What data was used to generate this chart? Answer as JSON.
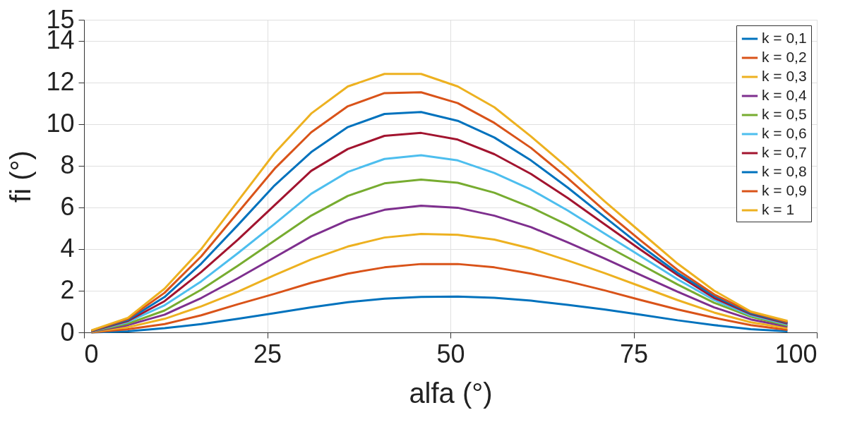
{
  "chart_data": {
    "type": "line",
    "xlabel": "alfa (°)",
    "ylabel": "fi (°)",
    "x": [
      1,
      6,
      11,
      16,
      21,
      26,
      31,
      36,
      41,
      46,
      51,
      56,
      61,
      66,
      71,
      76,
      81,
      86,
      91,
      96
    ],
    "xlim": [
      0,
      100
    ],
    "xticks": [
      0,
      25,
      50,
      75,
      100
    ],
    "ylim": [
      0,
      15
    ],
    "yticks": [
      0,
      2,
      4,
      6,
      8,
      10,
      12,
      14,
      15
    ],
    "grid": true,
    "legend": "top right",
    "line_style": "solid",
    "marker": "none",
    "series": [
      {
        "name": "k = 0,1",
        "color": "#0072bd",
        "values": [
          0,
          0.05,
          0.2,
          0.4,
          0.65,
          0.92,
          1.2,
          1.45,
          1.62,
          1.7,
          1.72,
          1.66,
          1.52,
          1.32,
          1.1,
          0.85,
          0.58,
          0.35,
          0.15,
          0.05
        ]
      },
      {
        "name": "k = 0,2",
        "color": "#d95319",
        "values": [
          0,
          0.15,
          0.4,
          0.82,
          1.35,
          1.85,
          2.38,
          2.82,
          3.12,
          3.28,
          3.28,
          3.12,
          2.82,
          2.45,
          2.02,
          1.55,
          1.1,
          0.7,
          0.35,
          0.12
        ]
      },
      {
        "name": "k = 0,3",
        "color": "#edb120",
        "values": [
          0.02,
          0.25,
          0.65,
          1.25,
          1.95,
          2.75,
          3.5,
          4.12,
          4.55,
          4.72,
          4.68,
          4.45,
          4.02,
          3.45,
          2.85,
          2.2,
          1.55,
          0.95,
          0.48,
          0.2
        ]
      },
      {
        "name": "k = 0,4",
        "color": "#7e2f8e",
        "values": [
          0.03,
          0.35,
          0.85,
          1.65,
          2.6,
          3.6,
          4.6,
          5.38,
          5.88,
          6.08,
          5.98,
          5.6,
          5.05,
          4.32,
          3.55,
          2.75,
          1.95,
          1.2,
          0.62,
          0.28
        ]
      },
      {
        "name": "k = 0,5",
        "color": "#77ac30",
        "values": [
          0.04,
          0.42,
          1.05,
          2.05,
          3.2,
          4.4,
          5.6,
          6.55,
          7.15,
          7.33,
          7.18,
          6.7,
          6.0,
          5.15,
          4.2,
          3.25,
          2.3,
          1.42,
          0.75,
          0.33
        ]
      },
      {
        "name": "k = 0,6",
        "color": "#4dbeee",
        "values": [
          0.05,
          0.5,
          1.3,
          2.45,
          3.8,
          5.2,
          6.65,
          7.7,
          8.32,
          8.5,
          8.25,
          7.65,
          6.85,
          5.85,
          4.75,
          3.65,
          2.55,
          1.55,
          0.82,
          0.38
        ]
      },
      {
        "name": "k = 0,7",
        "color": "#a2142f",
        "values": [
          0.06,
          0.55,
          1.5,
          2.9,
          4.45,
          6.1,
          7.75,
          8.8,
          9.43,
          9.57,
          9.25,
          8.55,
          7.6,
          6.45,
          5.2,
          3.95,
          2.75,
          1.65,
          0.88,
          0.42
        ]
      },
      {
        "name": "k = 0,8",
        "color": "#0072bd",
        "values": [
          0.07,
          0.6,
          1.7,
          3.3,
          5.15,
          7.05,
          8.65,
          9.85,
          10.48,
          10.57,
          10.15,
          9.35,
          8.25,
          6.95,
          5.55,
          4.15,
          2.85,
          1.75,
          0.92,
          0.46
        ]
      },
      {
        "name": "k = 0,9",
        "color": "#d95319",
        "values": [
          0.08,
          0.65,
          1.9,
          3.65,
          5.75,
          7.85,
          9.6,
          10.85,
          11.48,
          11.52,
          11.0,
          10.05,
          8.85,
          7.4,
          5.85,
          4.4,
          3.0,
          1.82,
          0.97,
          0.5
        ]
      },
      {
        "name": "k = 1",
        "color": "#edb120",
        "values": [
          0.1,
          0.7,
          2.1,
          4.0,
          6.3,
          8.6,
          10.5,
          11.8,
          12.4,
          12.4,
          11.8,
          10.8,
          9.4,
          7.9,
          6.3,
          4.8,
          3.3,
          2.0,
          1.0,
          0.55
        ]
      }
    ]
  }
}
